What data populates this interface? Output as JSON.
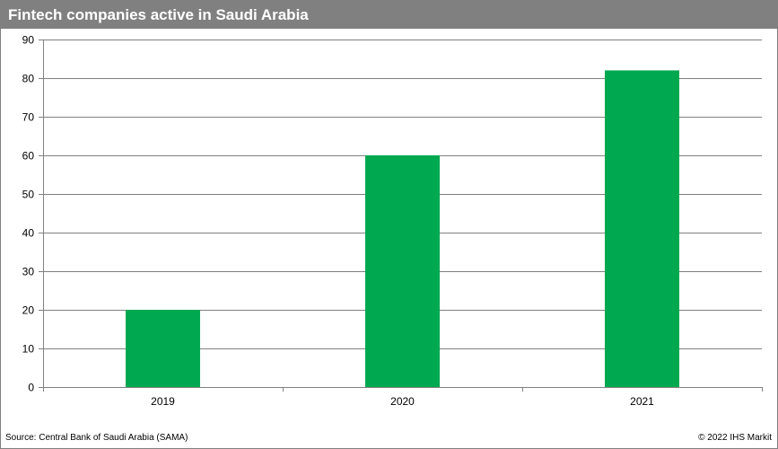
{
  "chart_data": {
    "type": "bar",
    "title": "Fintech companies active in Saudi Arabia",
    "categories": [
      "2019",
      "2020",
      "2021"
    ],
    "values": [
      20,
      60,
      82
    ],
    "ylim": [
      0,
      90
    ],
    "yticks": [
      0,
      10,
      20,
      30,
      40,
      50,
      60,
      70,
      80,
      90
    ],
    "xlabel": "",
    "ylabel": "",
    "grid": true,
    "bar_color": "#00a94f",
    "source": "Source: Central Bank of Saudi Arabia (SAMA)",
    "copyright": "© 2022  IHS Markit"
  }
}
